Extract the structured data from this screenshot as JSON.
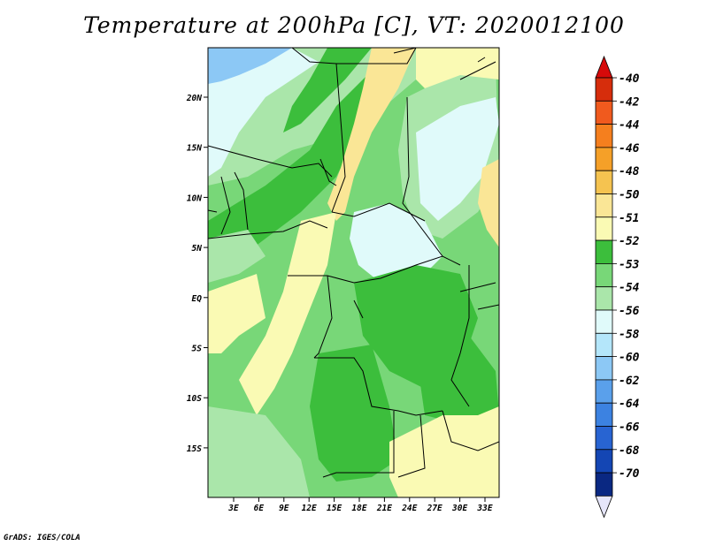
{
  "title": "Temperature at 200hPa [C], VT: 2020012100",
  "credit": "GrADS: IGES/COLA",
  "axes": {
    "lat_labels": [
      "20N",
      "15N",
      "10N",
      "5N",
      "EQ",
      "5S",
      "10S",
      "15S"
    ],
    "lon_labels": [
      "3E",
      "6E",
      "9E",
      "12E",
      "15E",
      "18E",
      "21E",
      "24E",
      "27E",
      "30E",
      "33E"
    ]
  },
  "colorbar": {
    "labels": [
      "-40",
      "-42",
      "-44",
      "-46",
      "-48",
      "-50",
      "-51",
      "-52",
      "-53",
      "-54",
      "-56",
      "-58",
      "-60",
      "-62",
      "-64",
      "-66",
      "-68",
      "-70"
    ],
    "colors": [
      "#d62d0c",
      "#f05a1e",
      "#f57f1e",
      "#f5a028",
      "#f5c350",
      "#fae696",
      "#fafab4",
      "#3cbe3c",
      "#78d778",
      "#aae6aa",
      "#e0fafa",
      "#b4e6fa",
      "#8cc8f5",
      "#5aa0eb",
      "#3c82e1",
      "#2864d2",
      "#1446b4",
      "#0a2882"
    ],
    "top_tip_color": "#d60a0a",
    "bottom_tip_color": "#e6e6fa"
  },
  "map_regions": {
    "base": "#78d778",
    "darkgreen": "#3cbe3c",
    "lightgreen": "#aae6aa",
    "cyan": "#e0fafa",
    "yellow": "#fae696",
    "paleyellow": "#fafab4",
    "blue": "#8cc8f5"
  }
}
